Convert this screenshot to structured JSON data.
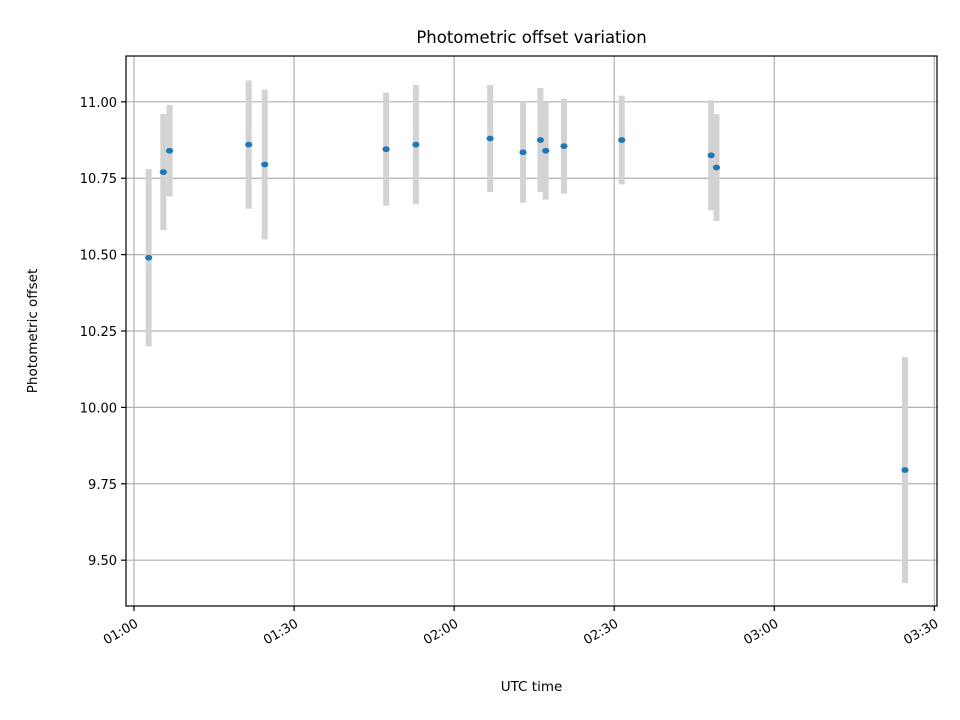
{
  "chart_data": {
    "type": "scatter",
    "title": "Photometric offset variation",
    "xlabel": "UTC time",
    "ylabel": "Photometric offset",
    "xlim": [
      "00:58:30",
      "03:30:30"
    ],
    "ylim": [
      9.35,
      11.15
    ],
    "x_ticks": [
      "01:00",
      "01:30",
      "02:00",
      "02:30",
      "03:00",
      "03:30"
    ],
    "y_ticks": [
      "9.50",
      "9.75",
      "10.00",
      "10.25",
      "10.50",
      "10.75",
      "11.00"
    ],
    "grid": true,
    "series": [
      {
        "marker_color": "#1f77b4",
        "errorbar_color": "#d3d3d3",
        "points": [
          {
            "x": "01:02:45",
            "y": 10.49,
            "err": 0.29
          },
          {
            "x": "01:05:30",
            "y": 10.77,
            "err": 0.19
          },
          {
            "x": "01:06:40",
            "y": 10.84,
            "err": 0.15
          },
          {
            "x": "01:21:30",
            "y": 10.86,
            "err": 0.21
          },
          {
            "x": "01:24:30",
            "y": 10.795,
            "err": 0.245
          },
          {
            "x": "01:47:15",
            "y": 10.845,
            "err": 0.185
          },
          {
            "x": "01:52:50",
            "y": 10.86,
            "err": 0.195
          },
          {
            "x": "02:06:45",
            "y": 10.88,
            "err": 0.175
          },
          {
            "x": "02:12:55",
            "y": 10.835,
            "err": 0.165
          },
          {
            "x": "02:16:10",
            "y": 10.875,
            "err": 0.17
          },
          {
            "x": "02:17:10",
            "y": 10.84,
            "err": 0.16
          },
          {
            "x": "02:20:35",
            "y": 10.855,
            "err": 0.155
          },
          {
            "x": "02:31:25",
            "y": 10.875,
            "err": 0.145
          },
          {
            "x": "02:48:10",
            "y": 10.825,
            "err": 0.18
          },
          {
            "x": "02:49:10",
            "y": 10.785,
            "err": 0.175
          },
          {
            "x": "03:24:30",
            "y": 9.795,
            "err": 0.37
          }
        ]
      }
    ]
  }
}
